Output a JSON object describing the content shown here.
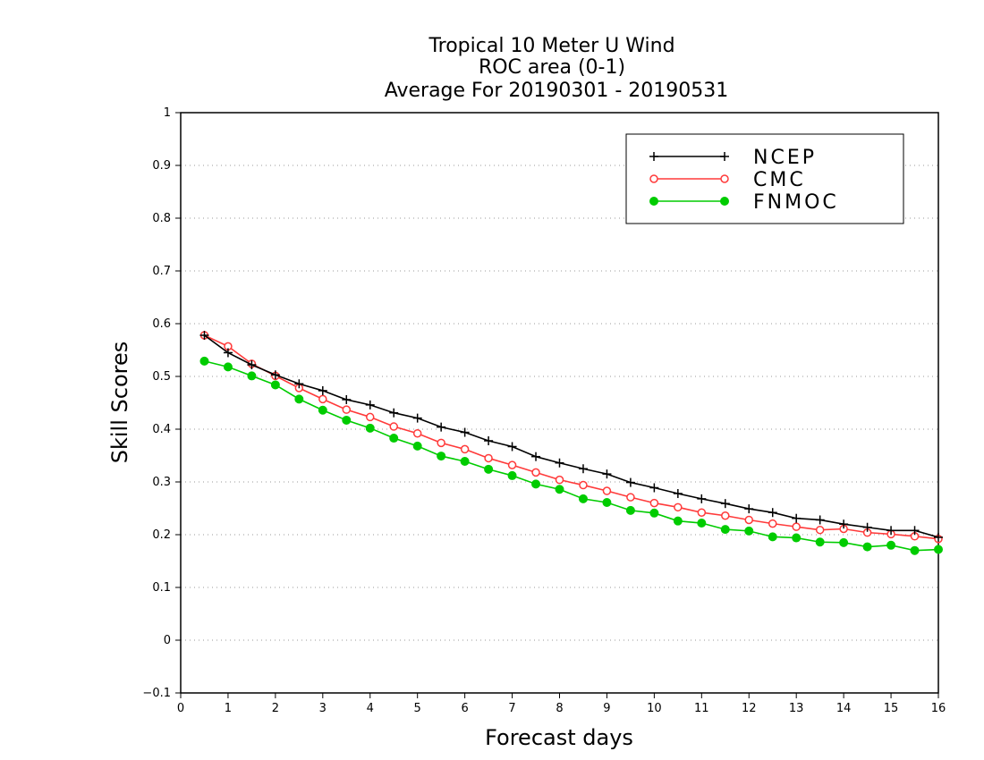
{
  "chart_data": {
    "type": "line",
    "title_lines": [
      "Tropical 10 Meter U Wind",
      "ROC area (0-1)",
      "Average For 20190301 - 20190531"
    ],
    "xlabel": "Forecast days",
    "ylabel": "Skill Scores",
    "xlim": [
      0,
      16
    ],
    "ylim": [
      -0.1,
      1
    ],
    "x_ticks": [
      "0",
      "1",
      "2",
      "3",
      "4",
      "5",
      "6",
      "7",
      "8",
      "9",
      "10",
      "11",
      "12",
      "13",
      "14",
      "15",
      "16"
    ],
    "y_ticks": [
      "−0.1",
      "0",
      "0.1",
      "0.2",
      "0.3",
      "0.4",
      "0.5",
      "0.6",
      "0.7",
      "0.8",
      "0.9",
      "1"
    ],
    "grid": "dotted horizontal",
    "legend_position": "top-right",
    "x": [
      0.5,
      1,
      1.5,
      2,
      2.5,
      3,
      3.5,
      4,
      4.5,
      5,
      5.5,
      6,
      6.5,
      7,
      7.5,
      8,
      8.5,
      9,
      9.5,
      10,
      10.5,
      11,
      11.5,
      12,
      12.5,
      13,
      13.5,
      14,
      14.5,
      15,
      15.5,
      16
    ],
    "series": [
      {
        "name": "NCEP",
        "color": "#000000",
        "marker": "plus",
        "values": [
          0.578,
          0.545,
          0.522,
          0.503,
          0.486,
          0.473,
          0.456,
          0.446,
          0.431,
          0.421,
          0.404,
          0.394,
          0.378,
          0.367,
          0.348,
          0.336,
          0.325,
          0.315,
          0.299,
          0.289,
          0.278,
          0.268,
          0.259,
          0.249,
          0.242,
          0.231,
          0.228,
          0.22,
          0.214,
          0.208,
          0.208,
          0.195
        ]
      },
      {
        "name": "CMC",
        "color": "#ff3a3a",
        "marker": "open-circle",
        "values": [
          0.578,
          0.557,
          0.524,
          0.501,
          0.478,
          0.457,
          0.437,
          0.423,
          0.405,
          0.392,
          0.374,
          0.362,
          0.345,
          0.332,
          0.318,
          0.304,
          0.294,
          0.283,
          0.271,
          0.26,
          0.252,
          0.242,
          0.236,
          0.228,
          0.221,
          0.215,
          0.209,
          0.211,
          0.204,
          0.201,
          0.197,
          0.192
        ]
      },
      {
        "name": "FNMOC",
        "color": "#00cc00",
        "marker": "filled-circle",
        "values": [
          0.529,
          0.518,
          0.501,
          0.484,
          0.457,
          0.436,
          0.417,
          0.402,
          0.383,
          0.368,
          0.349,
          0.339,
          0.324,
          0.312,
          0.296,
          0.286,
          0.268,
          0.261,
          0.246,
          0.241,
          0.226,
          0.222,
          0.21,
          0.207,
          0.196,
          0.194,
          0.186,
          0.185,
          0.177,
          0.18,
          0.17,
          0.172
        ]
      }
    ]
  }
}
